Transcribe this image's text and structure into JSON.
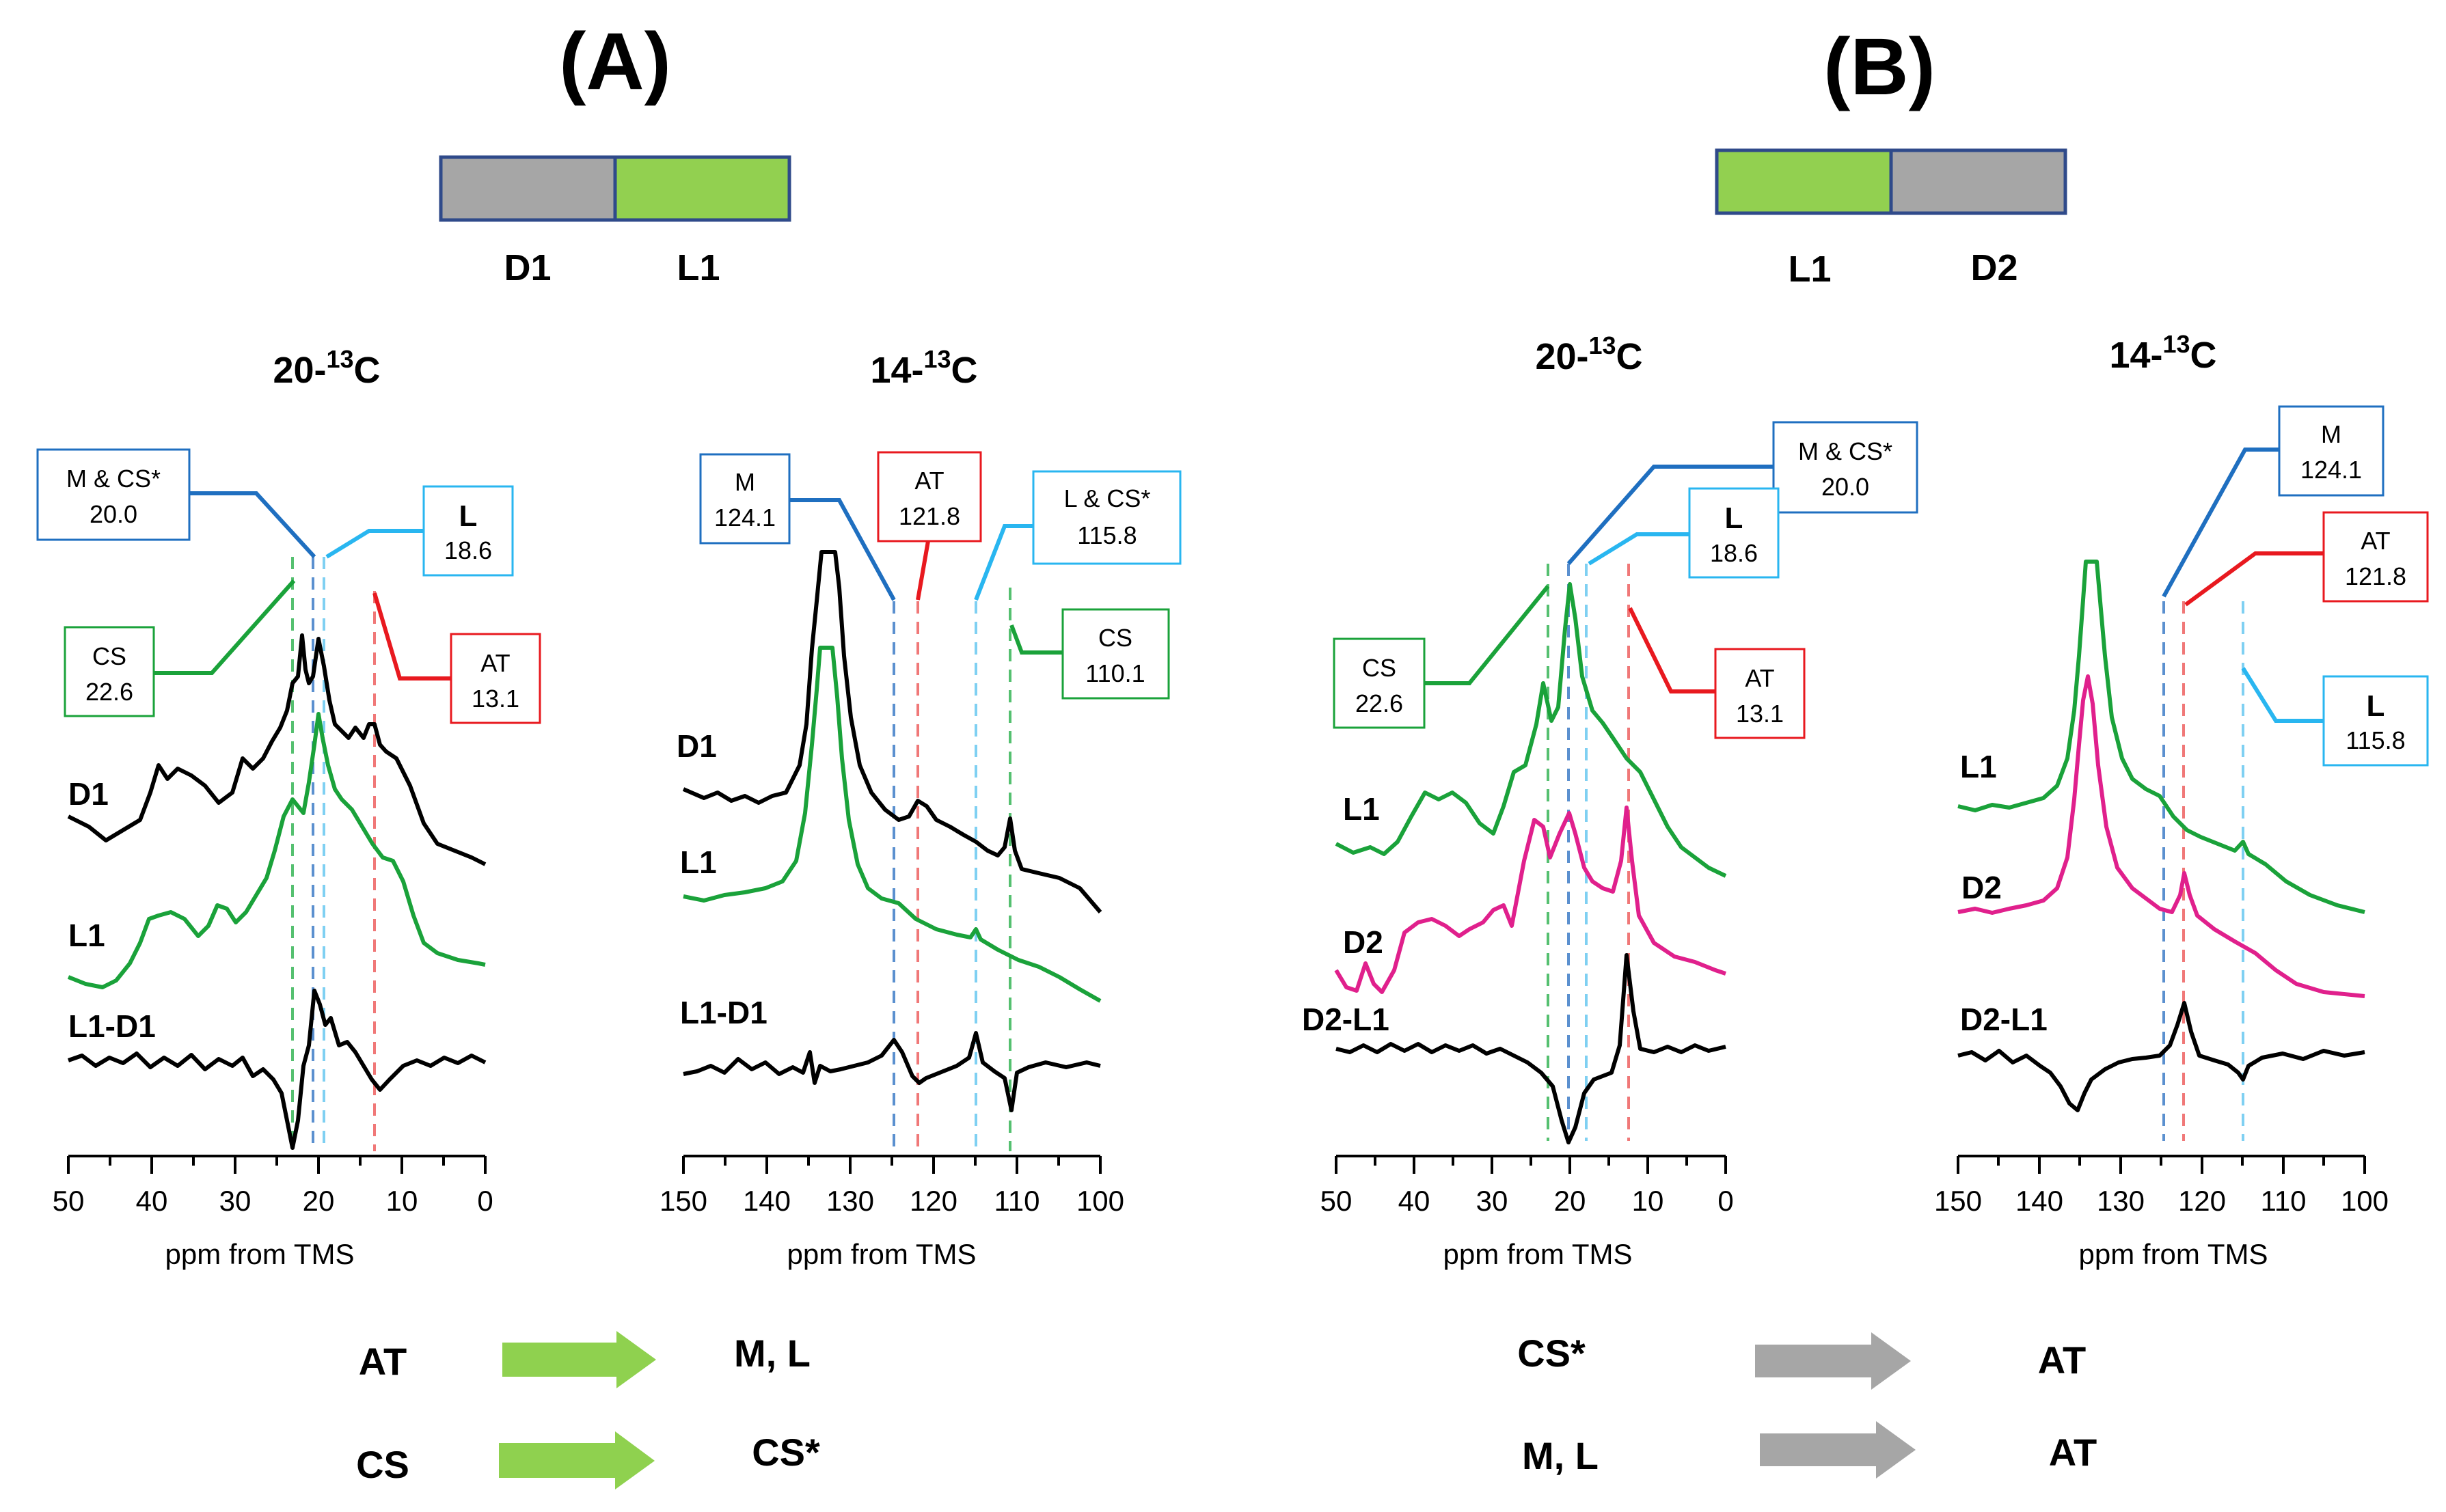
{
  "colors": {
    "black": "#000000",
    "green": "#1aa23a",
    "magenta": "#e0208c",
    "dark_blue": "#1f6fc0",
    "light_blue": "#29b6f0",
    "red": "#e8191f",
    "pale_red": "#f07878",
    "grey_block": "#a6a6a6",
    "green_block": "#92d050",
    "block_border": "#2f4a8a",
    "arrow_green": "#8fd14f",
    "arrow_grey": "#a6a6a6"
  },
  "panels": [
    {
      "id": "A",
      "title": "(A)",
      "blocks": [
        {
          "label": "D1",
          "color": "grey"
        },
        {
          "label": "L1",
          "color": "green"
        }
      ],
      "arrows": [
        {
          "from": "AT",
          "to": "M, L",
          "color": "green"
        },
        {
          "from": "CS",
          "to": "CS*",
          "color": "green"
        }
      ]
    },
    {
      "id": "B",
      "title": "(B)",
      "blocks": [
        {
          "label": "L1",
          "color": "green"
        },
        {
          "label": "D2",
          "color": "grey"
        }
      ],
      "arrows": [
        {
          "from": "CS*",
          "to": "AT",
          "color": "grey"
        },
        {
          "from": "M, L",
          "to": "AT",
          "color": "grey"
        }
      ]
    }
  ],
  "chart_data": [
    {
      "type": "line",
      "panel": "A",
      "title": "20-13C",
      "title_main": "20-",
      "title_sup": "13",
      "title_end": "C",
      "xlabel": "ppm from TMS",
      "x_range": [
        50,
        0
      ],
      "x_ticks": [
        50,
        40,
        30,
        20,
        10,
        0
      ],
      "x_tick_labels": [
        "50",
        "40",
        "30",
        "20",
        "10",
        "0"
      ],
      "spectra": [
        {
          "name": "D1",
          "color": "black"
        },
        {
          "name": "L1",
          "color": "green"
        },
        {
          "name": "L1-D1",
          "color": "black"
        }
      ],
      "markers": [
        {
          "label": "CS",
          "value": "22.6",
          "ppm": 22.6,
          "color": "green"
        },
        {
          "label": "M & CS*",
          "value": "20.0",
          "ppm": 20.0,
          "color": "dark_blue"
        },
        {
          "label": "L",
          "value": "18.6",
          "ppm": 18.6,
          "color": "light_blue"
        },
        {
          "label": "AT",
          "value": "13.1",
          "ppm": 13.1,
          "color": "red"
        }
      ]
    },
    {
      "type": "line",
      "panel": "A",
      "title": "14-13C",
      "title_main": "14-",
      "title_sup": "13",
      "title_end": "C",
      "xlabel": "ppm from TMS",
      "x_range": [
        150,
        100
      ],
      "x_ticks": [
        150,
        140,
        130,
        120,
        110,
        100
      ],
      "x_tick_labels": [
        "150",
        "140",
        "130",
        "120",
        "110",
        "100"
      ],
      "spectra": [
        {
          "name": "D1",
          "color": "black"
        },
        {
          "name": "L1",
          "color": "green"
        },
        {
          "name": "L1-D1",
          "color": "black"
        }
      ],
      "markers": [
        {
          "label": "M",
          "value": "124.1",
          "ppm": 124.1,
          "color": "dark_blue"
        },
        {
          "label": "AT",
          "value": "121.8",
          "ppm": 121.8,
          "color": "red"
        },
        {
          "label": "L & CS*",
          "value": "115.8",
          "ppm": 115.8,
          "color": "light_blue"
        },
        {
          "label": "CS",
          "value": "110.1",
          "ppm": 110.1,
          "color": "green"
        }
      ]
    },
    {
      "type": "line",
      "panel": "B",
      "title": "20-13C",
      "title_main": "20-",
      "title_sup": "13",
      "title_end": "C",
      "xlabel": "ppm from TMS",
      "x_range": [
        50,
        0
      ],
      "x_ticks": [
        50,
        40,
        30,
        20,
        10,
        0
      ],
      "x_tick_labels": [
        "50",
        "40",
        "30",
        "20",
        "10",
        "0"
      ],
      "spectra": [
        {
          "name": "L1",
          "color": "green"
        },
        {
          "name": "D2",
          "color": "magenta"
        },
        {
          "name": "D2-L1",
          "color": "black"
        }
      ],
      "markers": [
        {
          "label": "CS",
          "value": "22.6",
          "ppm": 22.6,
          "color": "green"
        },
        {
          "label": "M & CS*",
          "value": "20.0",
          "ppm": 20.0,
          "color": "dark_blue"
        },
        {
          "label": "L",
          "value": "18.6",
          "ppm": 18.6,
          "color": "light_blue"
        },
        {
          "label": "AT",
          "value": "13.1",
          "ppm": 13.1,
          "color": "red"
        }
      ]
    },
    {
      "type": "line",
      "panel": "B",
      "title": "14-13C",
      "title_main": "14-",
      "title_sup": "13",
      "title_end": "C",
      "xlabel": "ppm from TMS",
      "x_range": [
        150,
        100
      ],
      "x_ticks": [
        150,
        140,
        130,
        120,
        110,
        100
      ],
      "x_tick_labels": [
        "150",
        "140",
        "130",
        "120",
        "110",
        "100"
      ],
      "spectra": [
        {
          "name": "L1",
          "color": "green"
        },
        {
          "name": "D2",
          "color": "magenta"
        },
        {
          "name": "D2-L1",
          "color": "black"
        }
      ],
      "markers": [
        {
          "label": "M",
          "value": "124.1",
          "ppm": 124.1,
          "color": "dark_blue"
        },
        {
          "label": "AT",
          "value": "121.8",
          "ppm": 121.8,
          "color": "red"
        },
        {
          "label": "L",
          "value": "115.8",
          "ppm": 115.8,
          "color": "light_blue"
        }
      ]
    }
  ]
}
